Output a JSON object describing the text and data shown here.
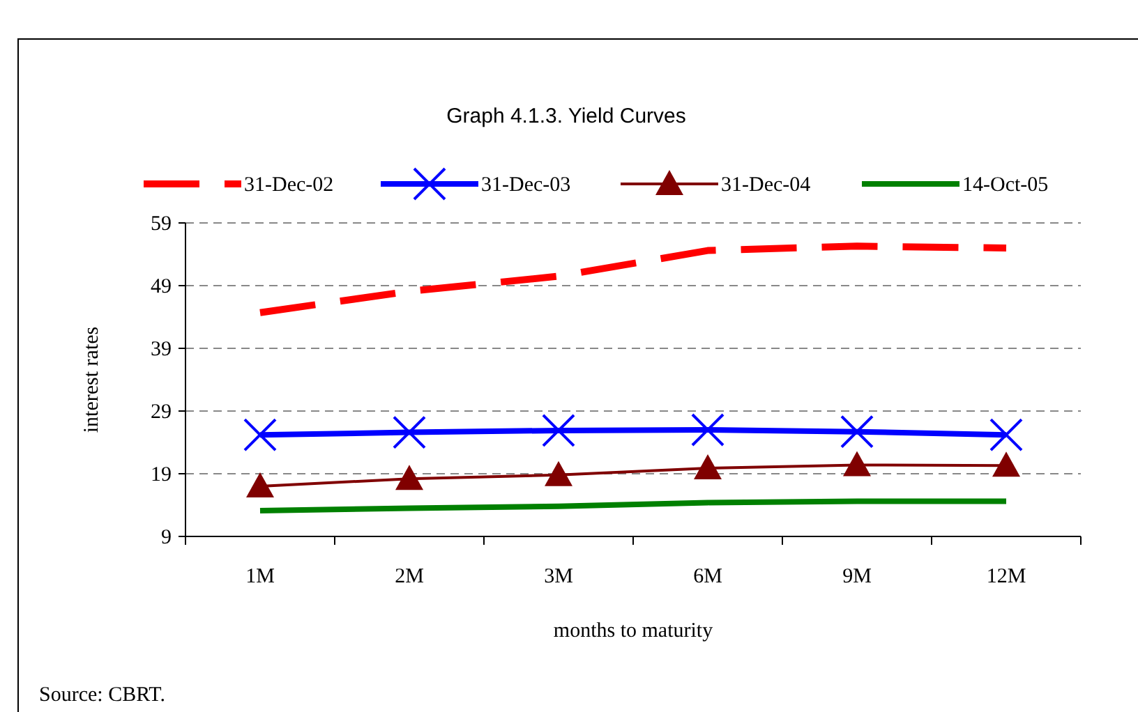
{
  "chart_data": {
    "type": "line",
    "title": "Graph 4.1.3. Yield Curves",
    "xlabel": "months to maturity",
    "ylabel": "interest rates",
    "categories": [
      "1M",
      "2M",
      "3M",
      "6M",
      "9M",
      "12M"
    ],
    "series": [
      {
        "name": "31-Dec-02",
        "color": "#ff0000",
        "marker": "none",
        "line_style": "dashed",
        "values": [
          44.7,
          48.1,
          50.5,
          54.6,
          55.3,
          55.0
        ]
      },
      {
        "name": "31-Dec-03",
        "color": "#0000ff",
        "marker": "cross",
        "line_style": "solid",
        "values": [
          25.2,
          25.6,
          25.9,
          26.0,
          25.7,
          25.2
        ]
      },
      {
        "name": "31-Dec-04",
        "color": "#800000",
        "marker": "triangle",
        "line_style": "solid",
        "values": [
          17.0,
          18.2,
          18.8,
          19.9,
          20.4,
          20.3
        ]
      },
      {
        "name": "14-Oct-05",
        "color": "#008000",
        "marker": "none",
        "line_style": "solid",
        "values": [
          13.1,
          13.5,
          13.8,
          14.4,
          14.6,
          14.6
        ]
      }
    ],
    "ylim": [
      9,
      59
    ],
    "yticks": [
      9,
      19,
      29,
      39,
      49,
      59
    ],
    "grid": "y",
    "legend": "top",
    "annotations": [
      "Source: CBRT."
    ]
  }
}
